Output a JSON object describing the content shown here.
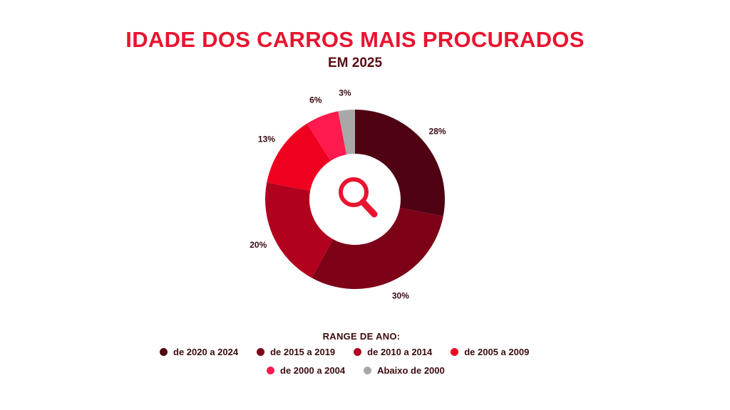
{
  "title": "IDADE DOS CARROS MAIS PROCURADOS",
  "subtitle": "EM 2025",
  "legend_title": "RANGE DE ANO:",
  "center_icon": "search-icon",
  "chart_data": {
    "type": "pie",
    "title": "IDADE DOS CARROS MAIS PROCURADOS",
    "subtitle": "EM 2025",
    "donut": true,
    "legend_title": "RANGE DE ANO:",
    "legend_placement": "bottom",
    "slices": [
      {
        "label": "de 2020 a 2024",
        "value": 28,
        "display": "28%",
        "color": "#4e0212"
      },
      {
        "label": "de 2015 a 2019",
        "value": 30,
        "display": "30%",
        "color": "#7d0117"
      },
      {
        "label": "de 2010 a 2014",
        "value": 20,
        "display": "20%",
        "color": "#b2001f"
      },
      {
        "label": "de 2005 a 2009",
        "value": 13,
        "display": "13%",
        "color": "#f0001f"
      },
      {
        "label": "de 2000 a 2004",
        "value": 6,
        "display": "6%",
        "color": "#ff1a4d"
      },
      {
        "label": "Abaixo de 2000",
        "value": 3,
        "display": "3%",
        "color": "#a8a8a8"
      }
    ]
  }
}
